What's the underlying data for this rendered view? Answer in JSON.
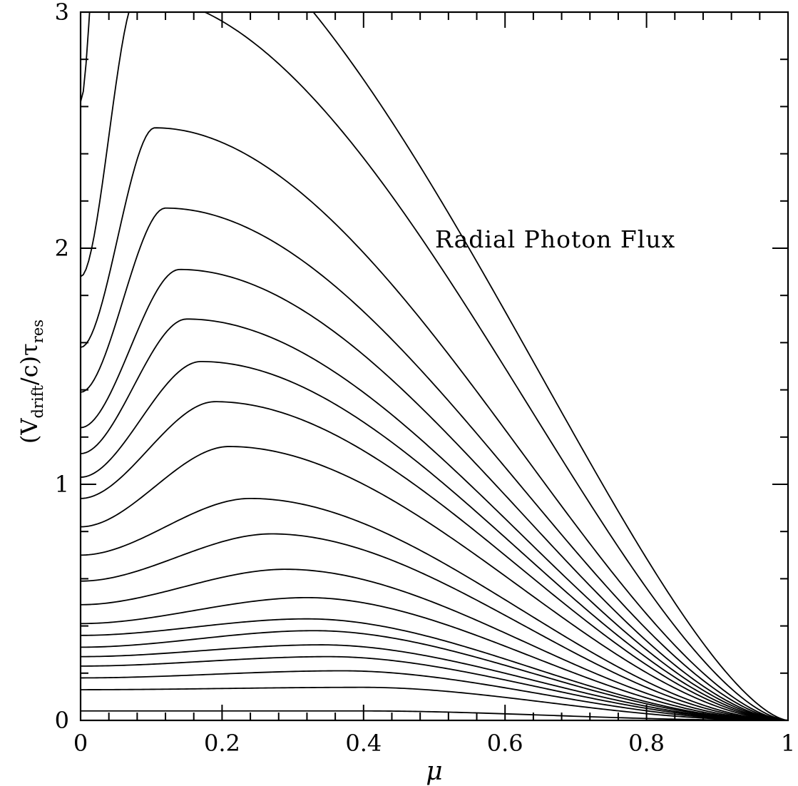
{
  "chart_data": {
    "type": "line",
    "annotation": "Radial Photon Flux",
    "xlabel": "μ",
    "ylabel": {
      "open": "(V",
      "sub1": "drift",
      "mid": "/c)τ",
      "sub2": "res"
    },
    "xlim": [
      0,
      1
    ],
    "ylim": [
      0,
      3
    ],
    "x_ticks": [
      "0",
      "0.2",
      "0.4",
      "0.6",
      "0.8",
      "1"
    ],
    "y_ticks": [
      "0",
      "1",
      "2",
      "3"
    ],
    "grid": false,
    "legend": "none",
    "line_color": "#000000",
    "series_start_values": [
      0.04,
      0.13,
      0.18,
      0.23,
      0.27,
      0.31,
      0.36,
      0.41,
      0.49,
      0.59,
      0.7,
      0.82,
      0.94,
      1.03,
      1.13,
      1.24,
      1.39,
      1.58,
      1.88,
      2.62
    ],
    "series_peak_values": [
      0.04,
      0.14,
      0.21,
      0.27,
      0.32,
      0.38,
      0.43,
      0.52,
      0.64,
      0.79,
      0.94,
      1.16,
      1.35,
      1.52,
      1.7,
      1.91,
      2.17,
      2.51,
      3.07,
      3.6
    ],
    "series_peak_mu": [
      0.4,
      0.4,
      0.37,
      0.35,
      0.34,
      0.33,
      0.32,
      0.32,
      0.29,
      0.27,
      0.24,
      0.21,
      0.19,
      0.17,
      0.15,
      0.14,
      0.12,
      0.105,
      0.08,
      0.03
    ]
  }
}
